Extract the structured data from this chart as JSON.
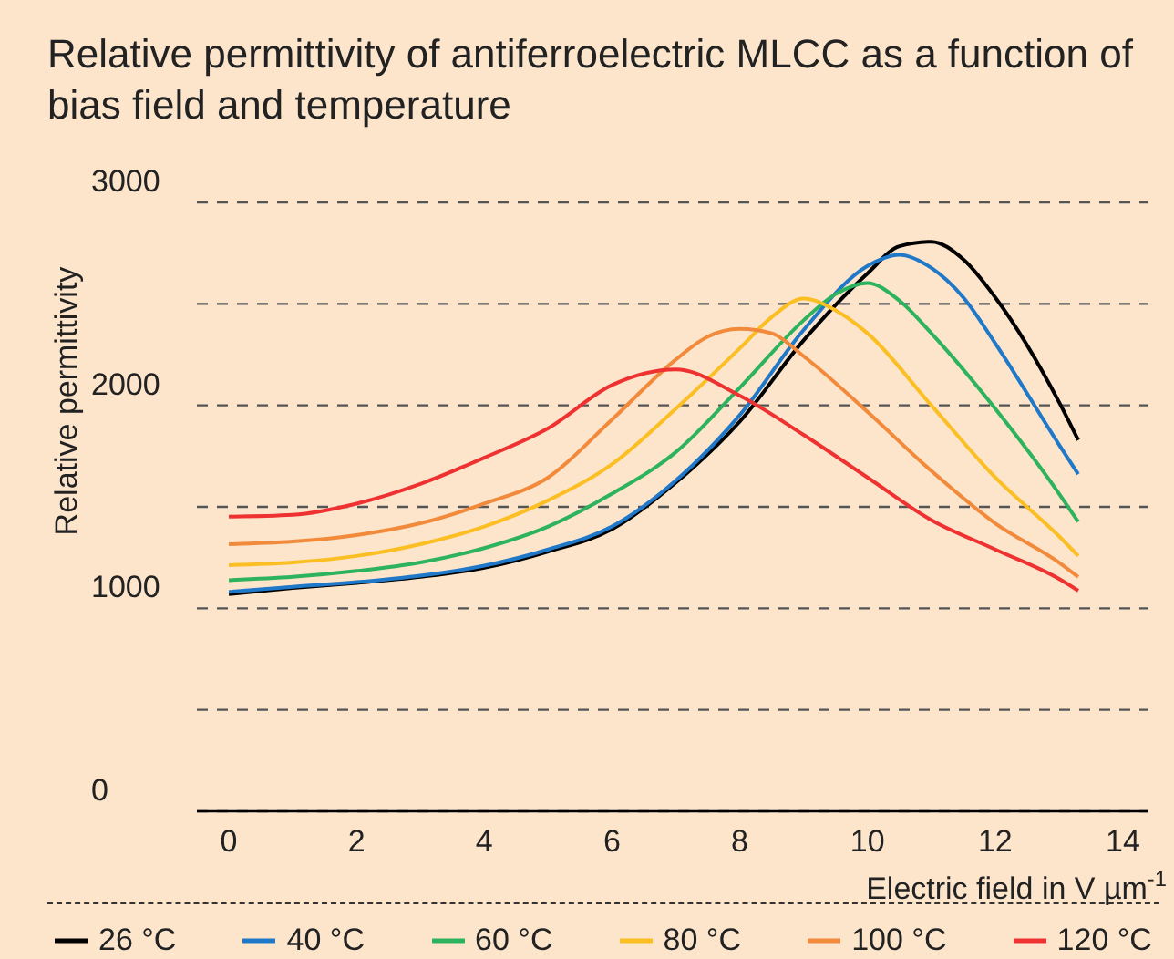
{
  "chart_data": {
    "type": "line",
    "title": "Relative permittivity of antiferroelectric MLCC as a function of bias field and temperature",
    "xlabel": "Electric field in V µm$^{-1}$",
    "ylabel": "Relative permittivity",
    "xlim": [
      -0.5,
      14.4
    ],
    "xticks": [
      0,
      2,
      4,
      6,
      8,
      10,
      12,
      14
    ],
    "ylim": [
      0,
      3000
    ],
    "yticks": [
      0,
      {
        "value": 500,
        "label": null
      },
      1000,
      {
        "value": 1500,
        "label": null
      },
      2000,
      {
        "value": 2500,
        "label": null
      },
      3000
    ],
    "grid": "y",
    "legend": "bottom",
    "marker": "none",
    "line_style": "solid",
    "series": [
      {
        "name": "26 °C",
        "color": "#000000",
        "x": [
          0,
          1,
          2,
          3,
          4,
          5,
          6,
          7,
          8,
          9,
          10,
          10.5,
          11,
          11.5,
          12,
          13,
          13.3
        ],
        "values": [
          1070,
          1100,
          1125,
          1155,
          1200,
          1280,
          1390,
          1620,
          1920,
          2320,
          2650,
          2784,
          2806,
          2719,
          2532,
          2016,
          1829
        ]
      },
      {
        "name": "40 °C",
        "color": "#1f78c8",
        "x": [
          0,
          1,
          2,
          3,
          4,
          5,
          6,
          7,
          8,
          9,
          10,
          10.5,
          11,
          11.5,
          12,
          13,
          13.3
        ],
        "values": [
          1081,
          1106,
          1129,
          1161,
          1210,
          1290,
          1403,
          1630,
          1952,
          2371,
          2687,
          2742,
          2677,
          2532,
          2306,
          1806,
          1661
        ]
      },
      {
        "name": "60 °C",
        "color": "#2db35d",
        "x": [
          0,
          1,
          2,
          3,
          4,
          5,
          6,
          7,
          8,
          9,
          9.5,
          10,
          10.5,
          11,
          12,
          13,
          13.3
        ],
        "values": [
          1139,
          1155,
          1184,
          1226,
          1297,
          1403,
          1565,
          1770,
          2087,
          2419,
          2548,
          2603,
          2516,
          2355,
          1984,
          1565,
          1426
        ]
      },
      {
        "name": "80 °C",
        "color": "#fbbf24",
        "x": [
          0,
          1,
          2,
          3,
          4,
          5,
          6,
          7,
          8,
          8.5,
          9,
          9.5,
          10,
          11,
          12,
          13,
          13.3
        ],
        "values": [
          1213,
          1226,
          1258,
          1316,
          1403,
          1532,
          1710,
          1984,
          2281,
          2435,
          2526,
          2468,
          2355,
          2000,
          1645,
          1355,
          1258
        ]
      },
      {
        "name": "100 °C",
        "color": "#f28a3c",
        "x": [
          0,
          1,
          2,
          3,
          4,
          5,
          6,
          7,
          7.5,
          8,
          8.5,
          9,
          10,
          11,
          12,
          13,
          13.3
        ],
        "values": [
          1316,
          1329,
          1361,
          1419,
          1516,
          1645,
          1930,
          2226,
          2339,
          2377,
          2355,
          2242,
          1968,
          1677,
          1419,
          1226,
          1155
        ]
      },
      {
        "name": "120 °C",
        "color": "#ee3131",
        "x": [
          0,
          1,
          2,
          3,
          4,
          5,
          6,
          7,
          8,
          9,
          10,
          11,
          12,
          13,
          13.3
        ],
        "values": [
          1452,
          1461,
          1516,
          1613,
          1742,
          1887,
          2100,
          2177,
          2048,
          1855,
          1645,
          1435,
          1290,
          1145,
          1087
        ]
      }
    ]
  }
}
